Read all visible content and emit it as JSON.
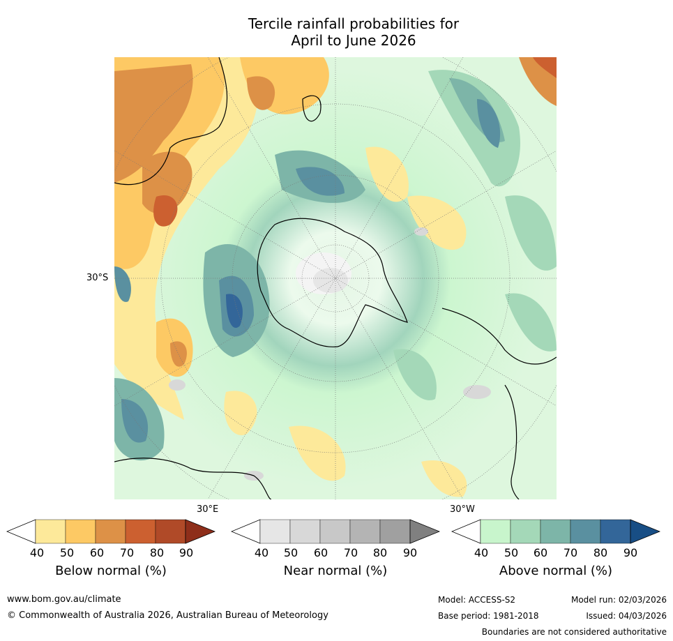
{
  "title": {
    "line1": "Tercile rainfall probabilities for",
    "line2": "April to June 2026"
  },
  "map": {
    "lat_label": "30°S",
    "lon_label_east": "30°E",
    "lon_label_west": "30°W"
  },
  "colorbars": [
    {
      "id": "below",
      "label": "Below normal (%)",
      "ticks": [
        "40",
        "50",
        "60",
        "70",
        "80",
        "90"
      ],
      "colors": [
        "#ffffff",
        "#fde99a",
        "#fdc964",
        "#dd9147",
        "#cc6030",
        "#b04a28",
        "#8e2e1a"
      ]
    },
    {
      "id": "near",
      "label": "Near normal (%)",
      "ticks": [
        "40",
        "50",
        "60",
        "70",
        "80",
        "90"
      ],
      "colors": [
        "#ffffff",
        "#e6e6e6",
        "#d8d8d8",
        "#c8c8c8",
        "#b4b4b4",
        "#a0a0a0",
        "#808080"
      ]
    },
    {
      "id": "above",
      "label": "Above normal (%)",
      "ticks": [
        "40",
        "50",
        "60",
        "70",
        "80",
        "90"
      ],
      "colors": [
        "#ffffff",
        "#c8f5cc",
        "#a4d8b8",
        "#7db5a8",
        "#5a90a0",
        "#336699",
        "#184e85"
      ]
    }
  ],
  "footer": {
    "url": "www.bom.gov.au/climate",
    "copyright": "© Commonwealth of Australia 2026, Australian Bureau of Meteorology",
    "model": "Model: ACCESS-S2",
    "base_period": "Base period: 1981-2018",
    "model_run": "Model run: 02/03/2026",
    "issued": "Issued: 04/03/2026",
    "disclaimer": "Boundaries are not considered authoritative"
  }
}
